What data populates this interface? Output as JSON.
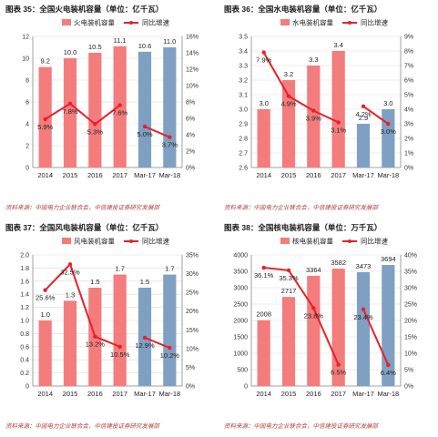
{
  "colors": {
    "bar_actual": "#f47c7c",
    "bar_forecast": "#7fa0c2",
    "line": "#e8202a",
    "grid": "#d9d9d9",
    "axis": "#8a8a8a",
    "title_text": "#1a1a1a",
    "source_text": "#b04040"
  },
  "panels": [
    {
      "title": "图表 35：全国火电装机容量（单位：亿千瓦）",
      "source": "资料来源：中国电力企业联合会，中信建投证券研究发展部"
    },
    {
      "title": "图表 36：全国水电装机容量（单位：亿千瓦）",
      "source": "资料来源：中国电力企业联合会，中信建投证券研究发展部"
    },
    {
      "title": "图表 37：全国风电装机容量（单位：亿千瓦）",
      "source": "资料来源：中国电力企业联合会，中信建投证券研究发展部"
    },
    {
      "title": "图表 38：全国核电装机容量（单位：万千瓦）",
      "source": "资料来源：中国电力企业联合会，中信建投证券研究发展部"
    }
  ],
  "chart_data": [
    {
      "type": "bar",
      "title": "图表 35：全国火电装机容量（单位：亿千瓦）",
      "categories": [
        "2014",
        "2015",
        "2016",
        "2017",
        "Mar-17",
        "Mar-18"
      ],
      "legend": [
        "火电装机容量",
        "同比增速"
      ],
      "legend_position": "top",
      "series": [
        {
          "name": "火电装机容量",
          "axis": "left",
          "values": [
            9.2,
            10.0,
            10.5,
            11.1,
            10.6,
            11.0
          ],
          "labels": [
            "9.2",
            "10.0",
            "10.5",
            "11.1",
            "10.6",
            "11.0"
          ]
        },
        {
          "name": "同比增速",
          "axis": "right",
          "type": "line",
          "segments": [
            [
              0,
              3
            ],
            [
              4,
              5
            ]
          ],
          "values": [
            5.9,
            7.8,
            5.3,
            7.6,
            5.0,
            3.7
          ],
          "labels": [
            "5.9%",
            "7.8%",
            "5.3%",
            "7.6%",
            "5.0%",
            "3.7%"
          ]
        }
      ],
      "forecast_from_index": 4,
      "ylim_left": [
        0,
        12
      ],
      "yticks_left": [
        "0",
        "2",
        "4",
        "6",
        "8",
        "10",
        "12"
      ],
      "ylim_right": [
        0,
        16
      ],
      "yticks_right": [
        "0%",
        "2%",
        "4%",
        "6%",
        "8%",
        "10%",
        "12%",
        "14%",
        "16%"
      ],
      "grid": true
    },
    {
      "type": "bar",
      "title": "图表 36：全国水电装机容量（单位：亿千瓦）",
      "categories": [
        "2014",
        "2015",
        "2016",
        "2017",
        "Mar-17",
        "Mar-18"
      ],
      "legend": [
        "水电装机容量",
        "同比增速"
      ],
      "legend_position": "top",
      "series": [
        {
          "name": "水电装机容量",
          "axis": "left",
          "values": [
            3.0,
            3.2,
            3.3,
            3.4,
            2.9,
            3.0
          ],
          "labels": [
            "3.0",
            "3.2",
            "3.3",
            "3.4",
            "2.9",
            "3.0"
          ]
        },
        {
          "name": "同比增速",
          "axis": "right",
          "type": "line",
          "segments": [
            [
              0,
              3
            ],
            [
              4,
              5
            ]
          ],
          "values": [
            7.9,
            4.9,
            3.9,
            3.1,
            4.2,
            3.0
          ],
          "labels": [
            "7.9%",
            "4.9%",
            "3.9%",
            "3.1%",
            "4.2%",
            "3.0%"
          ]
        }
      ],
      "forecast_from_index": 4,
      "ylim_left": [
        2.6,
        3.5
      ],
      "yticks_left": [
        "2.6",
        "2.7",
        "2.8",
        "2.9",
        "3.0",
        "3.1",
        "3.2",
        "3.3",
        "3.4",
        "3.5"
      ],
      "ylim_right": [
        0,
        9
      ],
      "yticks_right": [
        "0%",
        "1%",
        "2%",
        "3%",
        "4%",
        "5%",
        "6%",
        "7%",
        "8%",
        "9%"
      ],
      "grid": true
    },
    {
      "type": "bar",
      "title": "图表 37：全国风电装机容量（单位：亿千瓦）",
      "categories": [
        "2014",
        "2015",
        "2016",
        "2017",
        "Mar-17",
        "Mar-18"
      ],
      "legend": [
        "风电装机容量",
        "同比增速"
      ],
      "legend_position": "top",
      "series": [
        {
          "name": "风电装机容量",
          "axis": "left",
          "values": [
            1.0,
            1.3,
            1.5,
            1.7,
            1.5,
            1.7
          ],
          "labels": [
            "1.0",
            "1.3",
            "1.5",
            "1.7",
            "1.5",
            "1.7"
          ]
        },
        {
          "name": "同比增速",
          "axis": "right",
          "type": "line",
          "segments": [
            [
              0,
              3
            ],
            [
              4,
              5
            ]
          ],
          "values": [
            25.6,
            32.5,
            13.2,
            10.5,
            12.9,
            10.2
          ],
          "labels": [
            "25.6%",
            "32.5%",
            "13.2%",
            "10.5%",
            "12.9%",
            "10.2%"
          ]
        }
      ],
      "forecast_from_index": 4,
      "ylim_left": [
        0,
        2.0
      ],
      "yticks_left": [
        "0",
        "0.2",
        "0.4",
        "0.6",
        "0.8",
        "1.0",
        "1.2",
        "1.4",
        "1.6",
        "1.8",
        "2.0"
      ],
      "ylim_right": [
        0,
        35
      ],
      "yticks_right": [
        "0%",
        "5%",
        "10%",
        "15%",
        "20%",
        "25%",
        "30%",
        "35%"
      ],
      "grid": true
    },
    {
      "type": "bar",
      "title": "图表 38：全国核电装机容量（单位：万千瓦）",
      "categories": [
        "2014",
        "2015",
        "2016",
        "2017",
        "Mar-17",
        "Mar-18"
      ],
      "legend": [
        "核电装机容量",
        "同比增速"
      ],
      "legend_position": "top",
      "series": [
        {
          "name": "核电装机容量",
          "axis": "left",
          "values": [
            2008,
            2717,
            3364,
            3582,
            3473,
            3694
          ],
          "labels": [
            "2008",
            "2717",
            "3364",
            "3582",
            "3473",
            "3694"
          ]
        },
        {
          "name": "同比增速",
          "axis": "right",
          "type": "line",
          "segments": [
            [
              0,
              3
            ],
            [
              4,
              5
            ]
          ],
          "values": [
            36.1,
            35.3,
            23.8,
            6.5,
            23.4,
            6.4
          ],
          "labels": [
            "36.1%",
            "35.3%",
            "23.8%",
            "6.5%",
            "23.4%",
            "6.4%"
          ]
        }
      ],
      "forecast_from_index": 4,
      "ylim_left": [
        0,
        4000
      ],
      "yticks_left": [
        "0",
        "500",
        "1000",
        "1500",
        "2000",
        "2500",
        "3000",
        "3500",
        "4000"
      ],
      "ylim_right": [
        0,
        40
      ],
      "yticks_right": [
        "0%",
        "5%",
        "10%",
        "15%",
        "20%",
        "25%",
        "30%",
        "35%",
        "40%"
      ],
      "grid": true
    }
  ]
}
